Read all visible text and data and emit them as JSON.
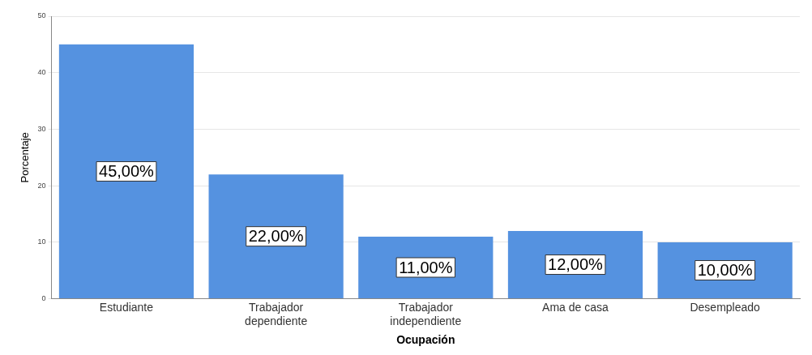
{
  "chart_data": {
    "type": "bar",
    "xlabel": "Ocupación",
    "ylabel": "Porcentaje",
    "categories": [
      "Estudiante",
      "Trabajador dependiente",
      "Trabajador independiente",
      "Ama de casa",
      "Desempleado"
    ],
    "values": [
      45,
      22,
      11,
      12,
      10
    ],
    "value_labels": [
      "45,00%",
      "22,00%",
      "11,00%",
      "12,00%",
      "10,00%"
    ],
    "color": "#5592e0",
    "ylim": [
      0,
      50
    ],
    "yticks": [
      0,
      10,
      20,
      30,
      40,
      50
    ],
    "grid": "y",
    "legend": false
  }
}
